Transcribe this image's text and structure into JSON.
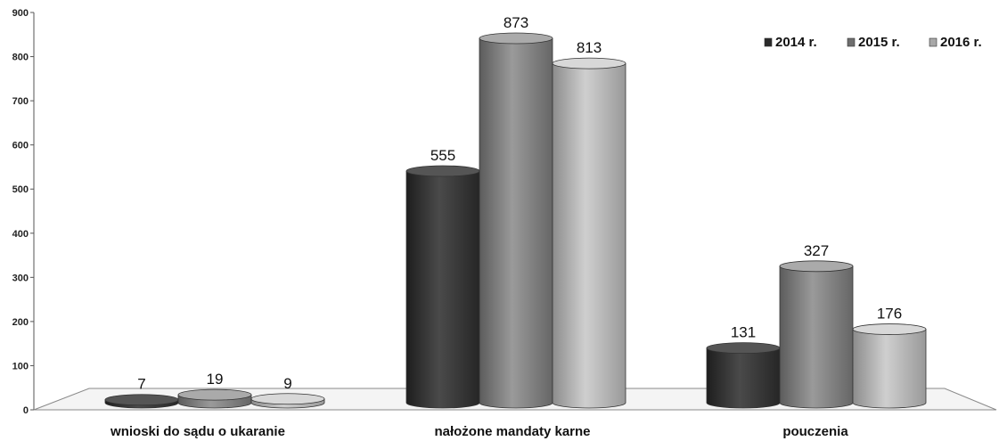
{
  "chart_data": {
    "type": "bar",
    "categories": [
      "wnioski do sądu o ukaranie",
      "nałożone mandaty karne",
      "pouczenia"
    ],
    "series": [
      {
        "name": "2014 r.",
        "values": [
          7,
          555,
          131
        ]
      },
      {
        "name": "2015 r.",
        "values": [
          19,
          873,
          327
        ]
      },
      {
        "name": "2016 r.",
        "values": [
          9,
          813,
          176
        ]
      }
    ],
    "ylim": [
      0,
      900
    ],
    "yticks": [
      0,
      100,
      200,
      300,
      400,
      500,
      600,
      700,
      800,
      900
    ],
    "legend_position": "top-right",
    "grid": false,
    "series_colors": [
      "#3a3a3a",
      "#7a7a7a",
      "#b0b0b0"
    ]
  }
}
